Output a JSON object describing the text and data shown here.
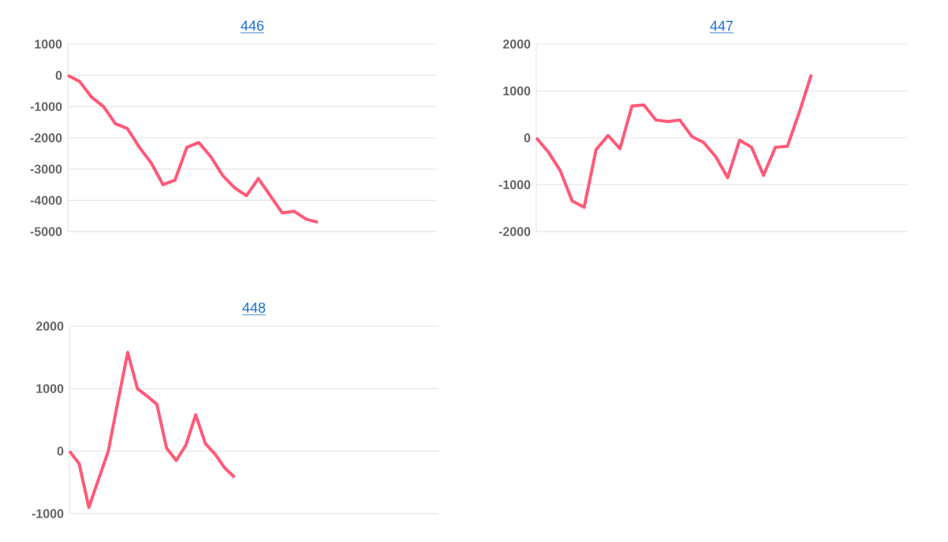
{
  "chart_data": [
    {
      "type": "line",
      "title": "446",
      "categories": [
        null,
        null,
        null,
        null,
        null,
        null,
        null,
        null,
        null,
        null,
        null,
        null,
        null,
        null,
        null,
        null,
        null,
        null,
        null,
        null,
        null,
        null,
        null,
        null,
        null,
        null,
        null,
        null,
        null,
        null,
        null,
        null
      ],
      "values": [
        0,
        -200,
        -700,
        -1000,
        -1550,
        -1700,
        -2300,
        -2800,
        -3500,
        -3350,
        -2300,
        -2150,
        -2600,
        -3200,
        -3600,
        -3850,
        -3300,
        -3850,
        -4400,
        -4350,
        -4600,
        -4700,
        null,
        null,
        null,
        null,
        null,
        null,
        null,
        null,
        null,
        null
      ],
      "color": "#ff5a78",
      "ylim": [
        -5000,
        1000
      ],
      "yticks": [
        -5000,
        -4000,
        -3000,
        -2000,
        -1000,
        0,
        1000
      ],
      "grid": "y",
      "tick_labels": "y",
      "marker": "none"
    },
    {
      "type": "line",
      "title": "447",
      "categories": [
        null,
        null,
        null,
        null,
        null,
        null,
        null,
        null,
        null,
        null,
        null,
        null,
        null,
        null,
        null,
        null,
        null,
        null,
        null,
        null,
        null,
        null,
        null,
        null,
        null,
        null,
        null,
        null,
        null,
        null,
        null,
        null
      ],
      "values": [
        0,
        -300,
        -700,
        -1350,
        -1480,
        -250,
        50,
        -230,
        680,
        700,
        380,
        350,
        380,
        30,
        -100,
        -400,
        -850,
        -50,
        -200,
        -800,
        -200,
        -180,
        550,
        1350,
        null,
        null,
        null,
        null,
        null,
        null,
        null,
        null
      ],
      "color": "#ff5a78",
      "ylim": [
        -2000,
        2000
      ],
      "yticks": [
        -2000,
        -1000,
        0,
        1000,
        2000
      ],
      "grid": "y",
      "tick_labels": "y",
      "marker": "none"
    },
    {
      "type": "line",
      "title": "448",
      "categories": [
        null,
        null,
        null,
        null,
        null,
        null,
        null,
        null,
        null,
        null,
        null,
        null,
        null,
        null,
        null,
        null,
        null,
        null,
        null,
        null,
        null,
        null,
        null,
        null,
        null,
        null,
        null,
        null,
        null,
        null,
        null,
        null,
        null,
        null,
        null,
        null,
        null,
        null,
        null
      ],
      "values": [
        0,
        -200,
        -900,
        -450,
        0,
        800,
        1580,
        1000,
        880,
        750,
        50,
        -150,
        100,
        580,
        120,
        -50,
        -270,
        -420,
        null,
        null,
        null,
        null,
        null,
        null,
        null,
        null,
        null,
        null,
        null,
        null,
        null,
        null,
        null,
        null,
        null,
        null,
        null,
        null,
        null
      ],
      "color": "#ff5a78",
      "ylim": [
        -1000,
        2000
      ],
      "yticks": [
        -1000,
        0,
        1000,
        2000
      ],
      "grid": "y",
      "tick_labels": "y",
      "marker": "none"
    }
  ]
}
